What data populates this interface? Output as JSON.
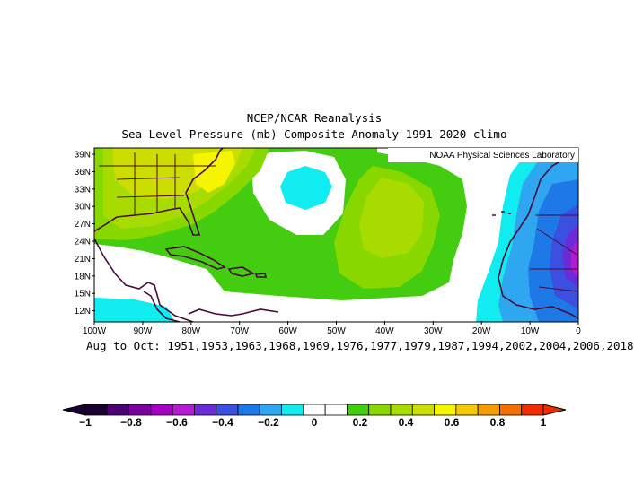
{
  "title_line1": "NCEP/NCAR Reanalysis",
  "title_line2": "Sea Level Pressure (mb) Composite Anomaly 1991-2020 climo",
  "credit": "NOAA Physical Sciences Laboratory",
  "subtitle": "Aug to Oct: 1951,1953,1963,1968,1969,1976,1977,1979,1987,1994,2002,2004,2006,2018",
  "map": {
    "lat_labels": [
      "39N",
      "36N",
      "33N",
      "30N",
      "27N",
      "24N",
      "21N",
      "18N",
      "15N",
      "12N"
    ],
    "lon_labels": [
      "100W",
      "90W",
      "80W",
      "70W",
      "60W",
      "50W",
      "40W",
      "30W",
      "20W",
      "10W",
      "0"
    ],
    "lon_range": [
      -100,
      0
    ],
    "lat_range": [
      10,
      40
    ]
  },
  "colorbar": {
    "labels": [
      "-1",
      "-0.8",
      "-0.6",
      "-0.4",
      "-0.2",
      "0",
      "0.2",
      "0.4",
      "0.6",
      "0.8",
      "1"
    ],
    "colors": [
      "#1a0030",
      "#4b0073",
      "#7a009e",
      "#a300c2",
      "#b31bd0",
      "#6b2bd9",
      "#3b4fe0",
      "#1e78e6",
      "#2ea6f0",
      "#10ecf0",
      "#ffffff",
      "#ffffff",
      "#44cc11",
      "#88d800",
      "#a8dc00",
      "#ccdd00",
      "#f5f500",
      "#f5c800",
      "#f59d00",
      "#f56f00",
      "#f02c00"
    ]
  }
}
